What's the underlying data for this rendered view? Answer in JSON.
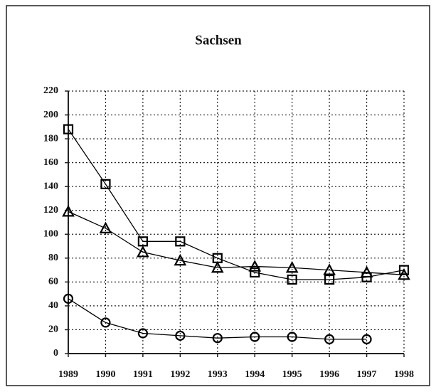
{
  "chart_data": {
    "type": "line",
    "title": "Sachsen",
    "categories": [
      "1989",
      "1990",
      "1991",
      "1992",
      "1993",
      "1994",
      "1995",
      "1996",
      "1997",
      "1998"
    ],
    "series": [
      {
        "color": "#000000",
        "marker": "square",
        "values": [
          188,
          142,
          94,
          94,
          80,
          68,
          62,
          62,
          64,
          70
        ]
      },
      {
        "color": "#000000",
        "marker": "triangle",
        "values": [
          119,
          105,
          85,
          78,
          72,
          73,
          72,
          70,
          68,
          66
        ]
      },
      {
        "color": "#000000",
        "marker": "circle",
        "values": [
          46,
          26,
          17,
          15,
          13,
          14,
          14,
          12,
          12,
          null
        ]
      }
    ],
    "ylim": [
      0,
      220
    ],
    "yticks": [
      0,
      20,
      40,
      60,
      80,
      100,
      120,
      140,
      160,
      180,
      200,
      220
    ],
    "grid": true
  }
}
